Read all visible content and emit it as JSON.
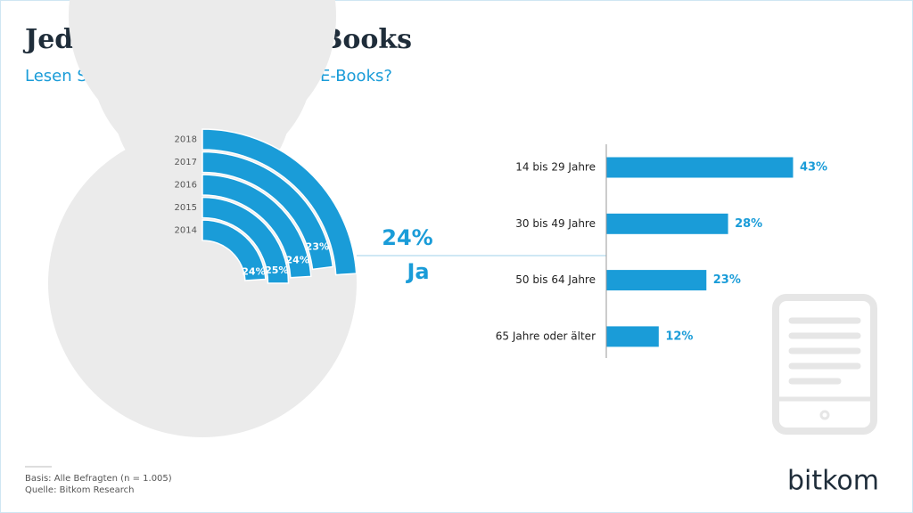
{
  "chart_data": [
    {
      "type": "radial_bar",
      "title": "Jeder Vierte liest E-Books",
      "subtitle": "Lesen Sie zumindest hin und wieder E-Books?",
      "categories": [
        "2014",
        "2015",
        "2016",
        "2017",
        "2018"
      ],
      "values": [
        24,
        25,
        24,
        23,
        24
      ],
      "value_labels": [
        "24%",
        "25%",
        "24%",
        "23%",
        "24%"
      ],
      "label": "Ja",
      "ylim": [
        0,
        100
      ],
      "color": "#1a9cd8"
    },
    {
      "type": "bar",
      "categories": [
        "14 bis 29 Jahre",
        "30 bis 49 Jahre",
        "50 bis 64 Jahre",
        "65 Jahre oder älter"
      ],
      "values": [
        43,
        28,
        23,
        12
      ],
      "value_labels": [
        "43%",
        "28%",
        "23%",
        "12%"
      ],
      "xlim": [
        0,
        50
      ],
      "color": "#1a9cd8"
    }
  ],
  "footer": {
    "basis": "Basis: Alle Befragten (n = 1.005)",
    "source": "Quelle: Bitkom Research"
  },
  "logo": "bitkom"
}
